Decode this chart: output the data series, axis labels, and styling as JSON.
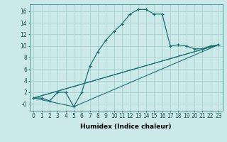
{
  "xlabel": "Humidex (Indice chaleur)",
  "background_color": "#cce9e9",
  "grid_color": "#aad0d0",
  "line_color": "#1a7070",
  "xlim": [
    -0.5,
    23.5
  ],
  "ylim": [
    -1.2,
    17.2
  ],
  "xticks": [
    0,
    1,
    2,
    3,
    4,
    5,
    6,
    7,
    8,
    9,
    10,
    11,
    12,
    13,
    14,
    15,
    16,
    17,
    18,
    19,
    20,
    21,
    22,
    23
  ],
  "yticks": [
    0,
    2,
    4,
    6,
    8,
    10,
    12,
    14,
    16
  ],
  "ytick_labels": [
    "-0",
    "2",
    "4",
    "6",
    "8",
    "10",
    "12",
    "14",
    "16"
  ],
  "line1_x": [
    0,
    1,
    2,
    3,
    4,
    5,
    6,
    7,
    8,
    9,
    10,
    11,
    12,
    13,
    14,
    15,
    16,
    17,
    18,
    19,
    20,
    21,
    22,
    23
  ],
  "line1_y": [
    1,
    1,
    0.5,
    2,
    2,
    -0.5,
    2,
    6.5,
    9,
    11,
    12.5,
    13.8,
    15.5,
    16.3,
    16.3,
    15.5,
    15.5,
    10,
    10.2,
    10,
    9.5,
    9.5,
    10,
    10.2
  ],
  "line2_x": [
    0,
    23
  ],
  "line2_y": [
    1,
    10.2
  ],
  "line3_x": [
    0,
    5,
    23
  ],
  "line3_y": [
    1,
    -0.5,
    10.2
  ],
  "line4_x": [
    0,
    5,
    23
  ],
  "line4_y": [
    1,
    3.0,
    10.2
  ],
  "xlabel_fontsize": 6.5,
  "tick_fontsize": 5.5
}
